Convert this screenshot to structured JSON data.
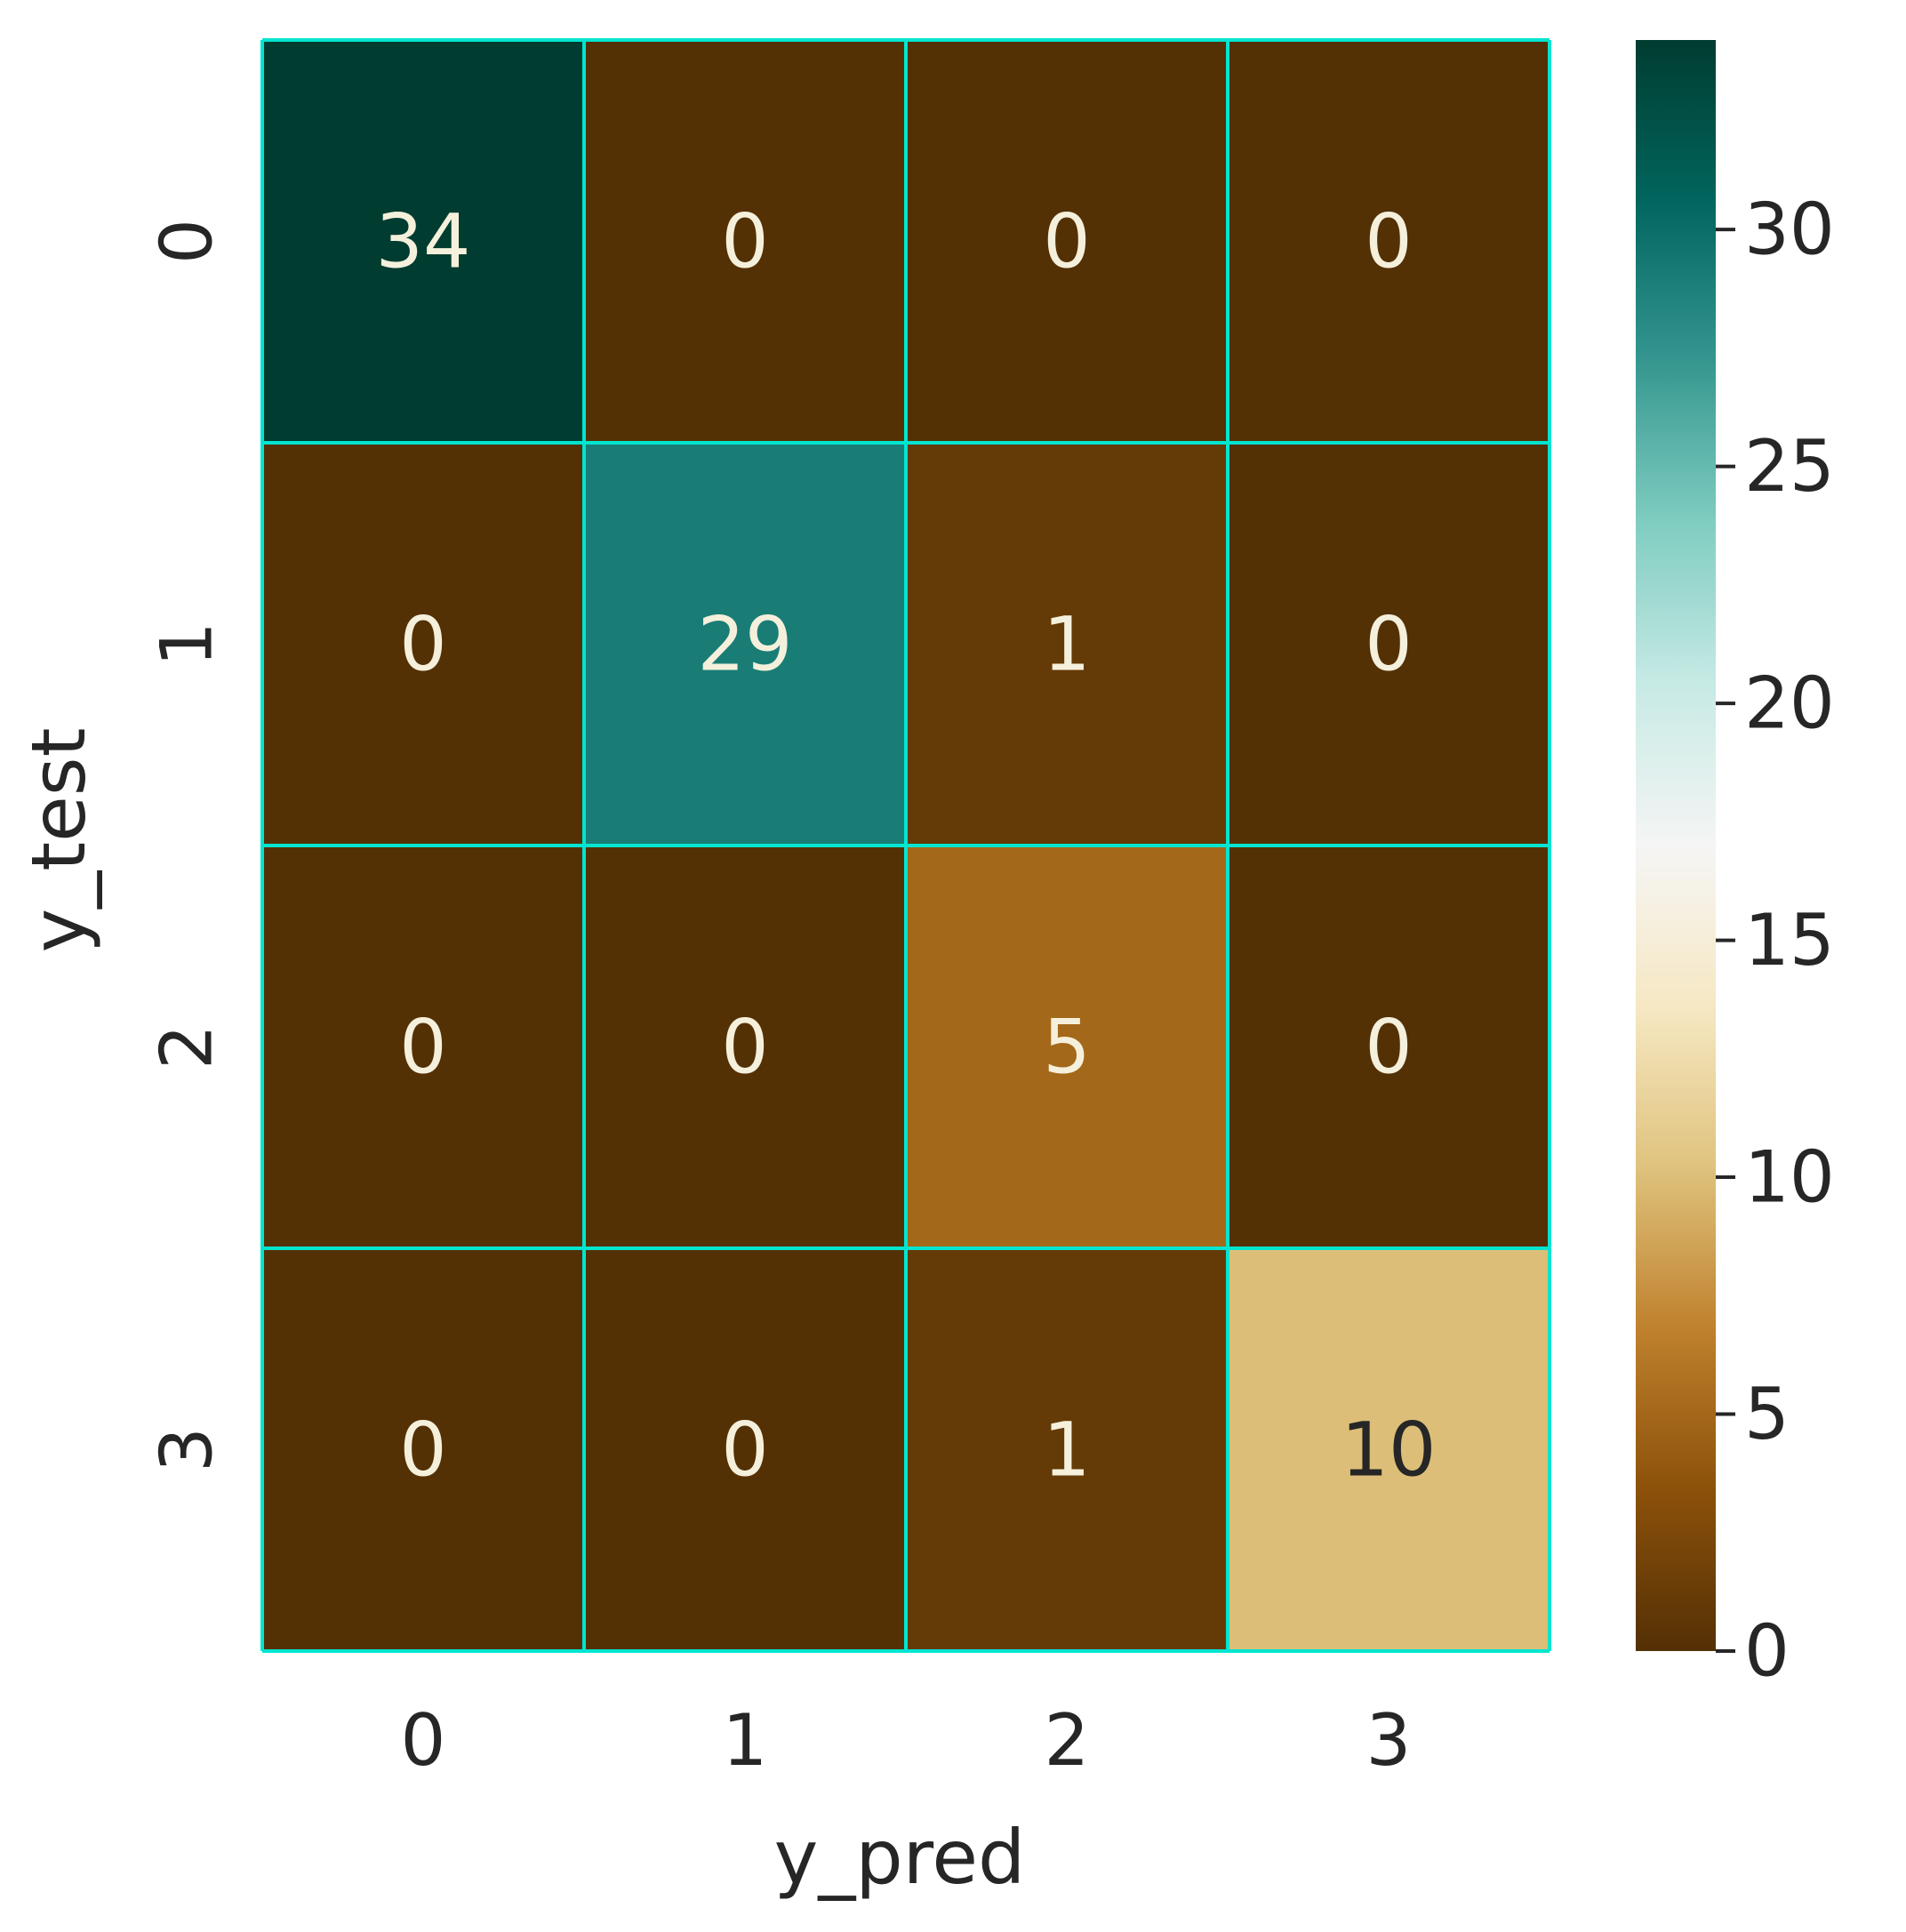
{
  "chart_data": {
    "type": "heatmap",
    "title": "",
    "xlabel": "y_pred",
    "ylabel": "y_test",
    "x_categories": [
      "0",
      "1",
      "2",
      "3"
    ],
    "y_categories": [
      "0",
      "1",
      "2",
      "3"
    ],
    "values": [
      [
        34,
        0,
        0,
        0
      ],
      [
        0,
        29,
        1,
        0
      ],
      [
        0,
        0,
        5,
        0
      ],
      [
        0,
        0,
        1,
        10
      ]
    ],
    "colormap": "BrBG",
    "vmin": 0,
    "vmax": 34,
    "colorbar_ticks": [
      0,
      5,
      10,
      15,
      20,
      25,
      30
    ],
    "grid_line_color": "#00e5d0",
    "light_text_color": "#f5f0dc",
    "dark_text_color": "#262626"
  }
}
